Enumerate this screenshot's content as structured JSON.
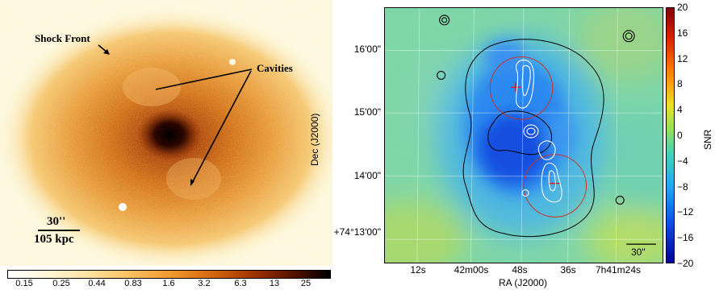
{
  "xray_image": {
    "annotations": {
      "shock_front": "Shock Front",
      "cavities": "Cavities"
    },
    "scale_bar": {
      "arcsec": "30''",
      "kpc": "105 kpc"
    },
    "colorbar_ticks": [
      "0.15",
      "0.25",
      "0.44",
      "0.83",
      "1.6",
      "3.2",
      "6.3",
      "13",
      "25"
    ]
  },
  "snr_map": {
    "y_axis_label": "Dec (J2000)",
    "x_axis_label": "RA (J2000)",
    "dec_ticks": [
      "16'00\"",
      "15'00\"",
      "14'00\"",
      "+74°13'00\""
    ],
    "ra_ticks": [
      "12s",
      "42m00s",
      "48s",
      "36s",
      "7h41m24s"
    ],
    "colorbar_label": "SNR",
    "colorbar_ticks": [
      "20",
      "16",
      "12",
      "8",
      "4",
      "0",
      "−4",
      "−8",
      "−12",
      "−16",
      "−20"
    ],
    "scale_bar_label": "30\"",
    "colors": {
      "contour": "#000000",
      "radio": "#ffffff",
      "circle": "#d03020",
      "marker": "#e01010"
    }
  }
}
